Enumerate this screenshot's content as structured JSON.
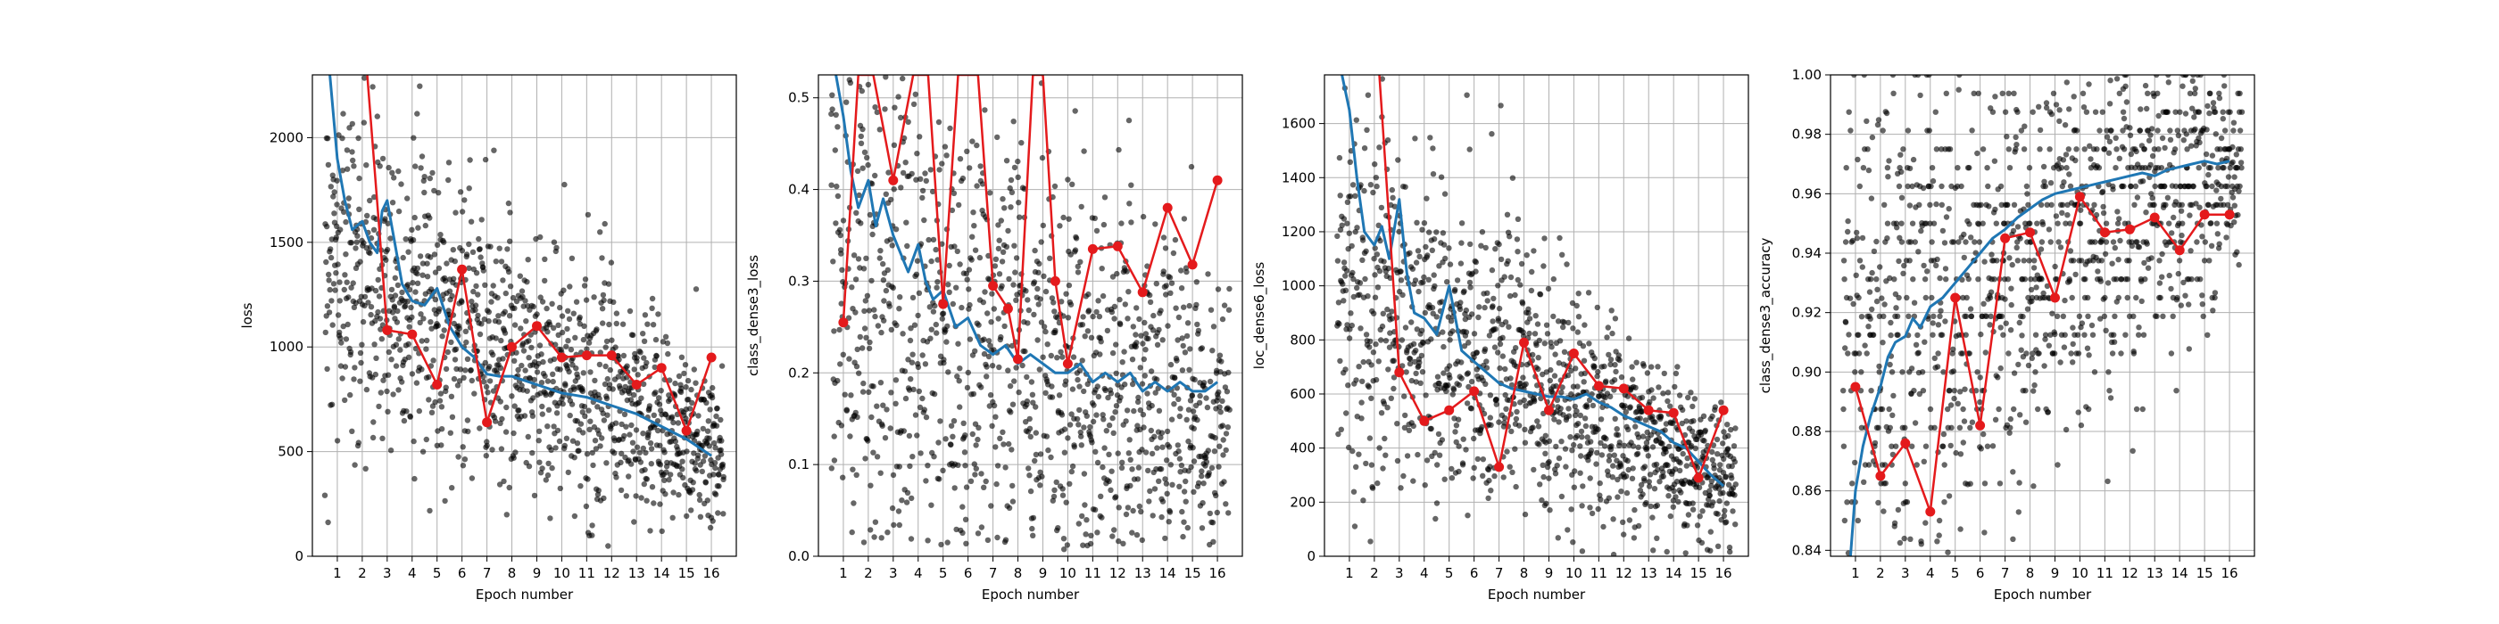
{
  "colors": {
    "smoothed_line": "#1f77b4",
    "epoch_line": "#e41a1c",
    "scatter_points": "#000000",
    "grid": "#b0b0b0"
  },
  "chart_data": [
    {
      "type": "scatter",
      "xlabel": "Epoch number",
      "ylabel": "loss",
      "xlim": [
        0,
        17
      ],
      "ylim": [
        0,
        2300
      ],
      "xticks": [
        1,
        2,
        3,
        4,
        5,
        6,
        7,
        8,
        9,
        10,
        11,
        12,
        13,
        14,
        15,
        16
      ],
      "yticks": [
        0,
        500,
        1000,
        1500,
        2000
      ],
      "ytick_labels": [
        "0",
        "500",
        "1000",
        "1500",
        "2000"
      ],
      "grid": true,
      "series": [
        {
          "style": "line",
          "x": [
            0.7,
            1.0,
            1.3,
            1.6,
            2.0,
            2.3,
            2.6,
            2.8,
            3.0,
            3.3,
            3.6,
            4.0,
            4.5,
            5.0,
            5.5,
            6.0,
            6.5,
            7.0,
            7.5,
            8.0,
            8.5,
            9.0,
            9.5,
            10.0,
            10.5,
            11.0,
            11.5,
            12.0,
            12.5,
            13.0,
            13.5,
            14.0,
            14.5,
            15.0,
            15.5,
            16.0
          ],
          "y": [
            2300,
            1900,
            1700,
            1560,
            1600,
            1500,
            1450,
            1650,
            1700,
            1500,
            1300,
            1220,
            1200,
            1280,
            1100,
            1000,
            950,
            870,
            860,
            860,
            840,
            820,
            800,
            780,
            770,
            760,
            740,
            720,
            700,
            680,
            650,
            620,
            590,
            560,
            520,
            480
          ]
        },
        {
          "style": "line-markers",
          "x": [
            2.2,
            3,
            4,
            5,
            6,
            7,
            8,
            9,
            10,
            11,
            12,
            13,
            14,
            15,
            16
          ],
          "y": [
            2300,
            1080,
            1060,
            820,
            1370,
            640,
            1000,
            1100,
            950,
            960,
            960,
            820,
            900,
            600,
            950
          ]
        },
        {
          "style": "points",
          "cloud": {
            "y_start_mean": 1450,
            "y_end_mean": 470,
            "y_start_spread": 420,
            "y_end_spread": 200,
            "ymax": 2300,
            "ymin": 0,
            "per_epoch": 80
          }
        }
      ]
    },
    {
      "type": "scatter",
      "xlabel": "Epoch number",
      "ylabel": "class_dense3_loss",
      "xlim": [
        0,
        17
      ],
      "ylim": [
        0,
        0.525
      ],
      "xticks": [
        1,
        2,
        3,
        4,
        5,
        6,
        7,
        8,
        9,
        10,
        11,
        12,
        13,
        14,
        15,
        16
      ],
      "yticks": [
        0,
        0.1,
        0.2,
        0.3,
        0.4,
        0.5
      ],
      "ytick_labels": [
        "0.0",
        "0.1",
        "0.2",
        "0.3",
        "0.4",
        "0.5"
      ],
      "grid": true,
      "series": [
        {
          "style": "line",
          "x": [
            0.7,
            1.0,
            1.3,
            1.6,
            2.0,
            2.3,
            2.6,
            3.0,
            3.3,
            3.6,
            4.0,
            4.3,
            4.6,
            5.0,
            5.5,
            6.0,
            6.5,
            7.0,
            7.5,
            8.0,
            8.5,
            9.0,
            9.5,
            10.0,
            10.5,
            11.0,
            11.5,
            12.0,
            12.5,
            13.0,
            13.5,
            14.0,
            14.5,
            15.0,
            15.5,
            16.0
          ],
          "y": [
            0.525,
            0.48,
            0.42,
            0.38,
            0.41,
            0.36,
            0.39,
            0.35,
            0.33,
            0.31,
            0.34,
            0.3,
            0.28,
            0.29,
            0.25,
            0.26,
            0.23,
            0.22,
            0.23,
            0.21,
            0.22,
            0.21,
            0.2,
            0.2,
            0.21,
            0.19,
            0.2,
            0.19,
            0.2,
            0.18,
            0.19,
            0.18,
            0.19,
            0.18,
            0.18,
            0.19
          ]
        },
        {
          "style": "line-markers",
          "x": [
            1,
            1.6,
            2.2,
            3,
            3.8,
            4.4,
            5,
            5.6,
            6.4,
            7,
            7.6,
            8,
            8.6,
            9,
            9.5,
            10,
            11,
            12,
            13,
            14,
            15,
            16
          ],
          "y": [
            0.255,
            0.525,
            0.525,
            0.41,
            0.525,
            0.525,
            0.275,
            0.525,
            0.525,
            0.295,
            0.27,
            0.215,
            0.525,
            0.525,
            0.3,
            0.21,
            0.335,
            0.338,
            0.288,
            0.38,
            0.318,
            0.41
          ]
        },
        {
          "style": "points",
          "cloud": {
            "y_start_mean": 0.3,
            "y_end_mean": 0.13,
            "y_start_spread": 0.17,
            "y_end_spread": 0.09,
            "ymax": 0.525,
            "ymin": 0,
            "per_epoch": 80
          }
        }
      ]
    },
    {
      "type": "scatter",
      "xlabel": "Epoch number",
      "ylabel": "loc_dense6_loss",
      "xlim": [
        0,
        17
      ],
      "ylim": [
        0,
        1780
      ],
      "xticks": [
        1,
        2,
        3,
        4,
        5,
        6,
        7,
        8,
        9,
        10,
        11,
        12,
        13,
        14,
        15,
        16
      ],
      "yticks": [
        0,
        200,
        400,
        600,
        800,
        1000,
        1200,
        1400,
        1600
      ],
      "ytick_labels": [
        "0",
        "200",
        "400",
        "600",
        "800",
        "1000",
        "1200",
        "1400",
        "1600"
      ],
      "grid": true,
      "series": [
        {
          "style": "line",
          "x": [
            0.7,
            1.0,
            1.3,
            1.6,
            2.0,
            2.3,
            2.6,
            3.0,
            3.3,
            3.6,
            4.0,
            4.5,
            5.0,
            5.5,
            6.0,
            6.5,
            7.0,
            7.5,
            8.0,
            8.5,
            9.0,
            9.5,
            10.0,
            10.5,
            11.0,
            11.5,
            12.0,
            12.5,
            13.0,
            13.5,
            14.0,
            14.5,
            15.0,
            15.5,
            16.0
          ],
          "y": [
            1780,
            1650,
            1400,
            1200,
            1150,
            1220,
            1100,
            1320,
            1050,
            900,
            880,
            820,
            1000,
            760,
            720,
            680,
            640,
            620,
            610,
            600,
            590,
            590,
            580,
            600,
            570,
            550,
            520,
            500,
            480,
            460,
            420,
            400,
            350,
            300,
            260
          ]
        },
        {
          "style": "line-markers",
          "x": [
            2.2,
            3,
            4,
            5,
            6,
            7,
            8,
            9,
            10,
            11,
            12,
            13,
            14,
            15,
            16
          ],
          "y": [
            1780,
            680,
            500,
            540,
            610,
            330,
            790,
            540,
            750,
            630,
            620,
            540,
            530,
            290,
            540
          ]
        },
        {
          "style": "points",
          "cloud": {
            "y_start_mean": 1000,
            "y_end_mean": 250,
            "y_start_spread": 380,
            "y_end_spread": 110,
            "ymax": 1780,
            "ymin": 0,
            "per_epoch": 80
          }
        }
      ]
    },
    {
      "type": "scatter",
      "xlabel": "Epoch number",
      "ylabel": "class_dense3_accuracy",
      "xlim": [
        0,
        17
      ],
      "ylim": [
        0.838,
        1.0
      ],
      "xticks": [
        1,
        2,
        3,
        4,
        5,
        6,
        7,
        8,
        9,
        10,
        11,
        12,
        13,
        14,
        15,
        16
      ],
      "yticks": [
        0.84,
        0.86,
        0.88,
        0.9,
        0.92,
        0.94,
        0.96,
        0.98,
        1.0
      ],
      "ytick_labels": [
        "0.84",
        "0.86",
        "0.88",
        "0.90",
        "0.92",
        "0.94",
        "0.96",
        "0.98",
        "1.00"
      ],
      "grid": true,
      "series": [
        {
          "style": "line",
          "x": [
            0.8,
            1.0,
            1.3,
            1.6,
            2.0,
            2.3,
            2.6,
            3.0,
            3.3,
            3.6,
            4.0,
            4.5,
            5.0,
            5.5,
            6.0,
            6.5,
            7.0,
            7.5,
            8.0,
            8.5,
            9.0,
            9.5,
            10.0,
            10.5,
            11.0,
            11.5,
            12.0,
            12.5,
            13.0,
            13.5,
            14.0,
            14.5,
            15.0,
            15.5,
            16.0
          ],
          "y": [
            0.838,
            0.86,
            0.875,
            0.885,
            0.895,
            0.905,
            0.91,
            0.912,
            0.918,
            0.915,
            0.922,
            0.925,
            0.93,
            0.935,
            0.94,
            0.945,
            0.948,
            0.952,
            0.955,
            0.958,
            0.96,
            0.961,
            0.962,
            0.963,
            0.964,
            0.965,
            0.966,
            0.967,
            0.966,
            0.968,
            0.969,
            0.97,
            0.971,
            0.97,
            0.971
          ]
        },
        {
          "style": "line-markers",
          "x": [
            1,
            2,
            3,
            4,
            5,
            6,
            7,
            8,
            9,
            10,
            11,
            12,
            13,
            14,
            15,
            16
          ],
          "y": [
            0.895,
            0.865,
            0.876,
            0.853,
            0.925,
            0.882,
            0.945,
            0.947,
            0.925,
            0.959,
            0.947,
            0.948,
            0.952,
            0.941,
            0.953,
            0.953
          ]
        },
        {
          "style": "points",
          "cloud": {
            "y_start_mean": 0.905,
            "y_end_mean": 0.975,
            "y_start_spread": 0.05,
            "y_end_spread": 0.02,
            "ymax": 1.0,
            "ymin": 0.838,
            "per_epoch": 80,
            "banded": true
          }
        }
      ]
    }
  ]
}
